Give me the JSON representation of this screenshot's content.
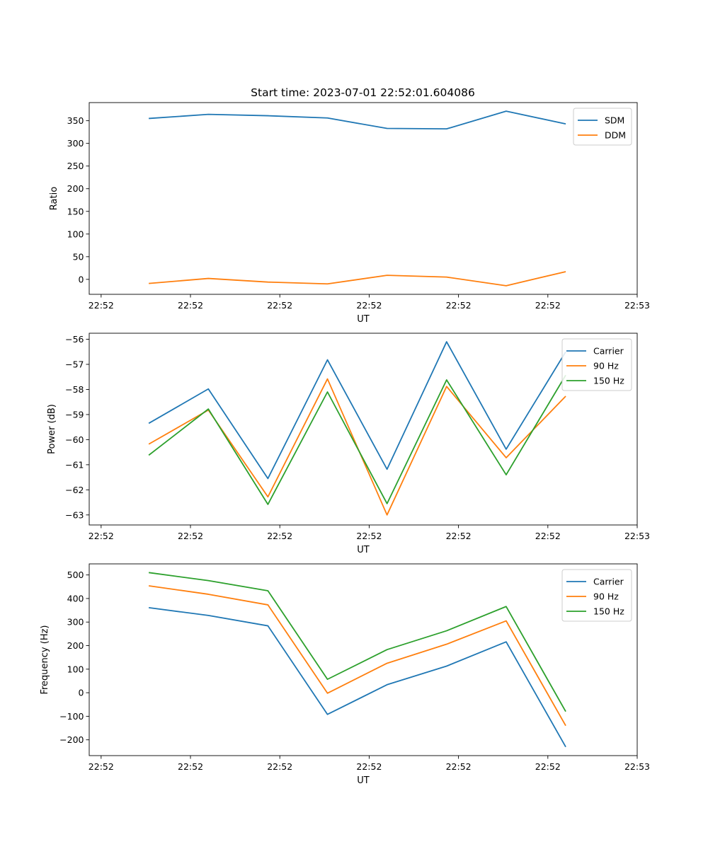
{
  "figure_title": "Start time: 2023-07-01 22:52:01.604086",
  "chart_data": [
    {
      "type": "line",
      "name": "ratio",
      "title": "Start time: 2023-07-01 22:52:01.604086",
      "xlabel": "UT",
      "ylabel": "Ratio",
      "xlim": [
        0,
        9.2
      ],
      "xticks": [
        0.2,
        1.7,
        3.2,
        4.7,
        6.2,
        7.7,
        9.2
      ],
      "xticklabels": [
        "22:52",
        "22:52",
        "22:52",
        "22:52",
        "22:52",
        "22:52",
        "22:53"
      ],
      "ylim": [
        -33,
        390
      ],
      "yticks": [
        0,
        50,
        100,
        150,
        200,
        250,
        300,
        350
      ],
      "yticklabels": [
        "0",
        "50",
        "100",
        "150",
        "200",
        "250",
        "300",
        "350"
      ],
      "legend_position": "top-right",
      "x": [
        1,
        2,
        3,
        4,
        5,
        6,
        7,
        8
      ],
      "series": [
        {
          "name": "SDM",
          "color": "#1f77b4",
          "values": [
            355,
            364,
            361,
            356,
            333,
            332,
            371,
            343
          ]
        },
        {
          "name": "DDM",
          "color": "#ff7f0e",
          "values": [
            -9,
            2,
            -6,
            -10,
            9,
            5,
            -14,
            17
          ]
        }
      ]
    },
    {
      "type": "line",
      "name": "power",
      "title": "",
      "xlabel": "UT",
      "ylabel": "Power (dB)",
      "xlim": [
        0,
        9.2
      ],
      "xticks": [
        0.2,
        1.7,
        3.2,
        4.7,
        6.2,
        7.7,
        9.2
      ],
      "xticklabels": [
        "22:52",
        "22:52",
        "22:52",
        "22:52",
        "22:52",
        "22:52",
        "22:53"
      ],
      "ylim": [
        -63.4,
        -55.76
      ],
      "yticks": [
        -63,
        -62,
        -61,
        -60,
        -59,
        -58,
        -57,
        -56
      ],
      "yticklabels": [
        "−63",
        "−62",
        "−61",
        "−60",
        "−59",
        "−58",
        "−57",
        "−56"
      ],
      "legend_position": "top-right",
      "x": [
        1,
        2,
        3,
        4,
        5,
        6,
        7,
        8
      ],
      "series": [
        {
          "name": "Carrier",
          "color": "#1f77b4",
          "values": [
            -59.35,
            -57.98,
            -61.55,
            -56.82,
            -61.18,
            -56.1,
            -60.38,
            -56.5
          ]
        },
        {
          "name": "90 Hz",
          "color": "#ff7f0e",
          "values": [
            -60.18,
            -58.82,
            -62.28,
            -57.58,
            -63.0,
            -57.88,
            -60.72,
            -58.27
          ]
        },
        {
          "name": "150 Hz",
          "color": "#2ca02c",
          "values": [
            -60.62,
            -58.78,
            -62.58,
            -58.1,
            -62.55,
            -57.62,
            -61.4,
            -57.43
          ]
        }
      ]
    },
    {
      "type": "line",
      "name": "frequency",
      "title": "",
      "xlabel": "UT",
      "ylabel": "Frequency (Hz)",
      "xlim": [
        0,
        9.2
      ],
      "xticks": [
        0.2,
        1.7,
        3.2,
        4.7,
        6.2,
        7.7,
        9.2
      ],
      "xticklabels": [
        "22:52",
        "22:52",
        "22:52",
        "22:52",
        "22:52",
        "22:52",
        "22:53"
      ],
      "ylim": [
        -267,
        547
      ],
      "yticks": [
        -200,
        -100,
        0,
        100,
        200,
        300,
        400,
        500
      ],
      "yticklabels": [
        "−200",
        "−100",
        "0",
        "100",
        "200",
        "300",
        "400",
        "500"
      ],
      "legend_position": "top-right",
      "x": [
        1,
        2,
        3,
        4,
        5,
        6,
        7,
        8
      ],
      "series": [
        {
          "name": "Carrier",
          "color": "#1f77b4",
          "values": [
            361,
            328,
            284,
            -92,
            34,
            113,
            216,
            -230
          ]
        },
        {
          "name": "90 Hz",
          "color": "#ff7f0e",
          "values": [
            454,
            418,
            373,
            -2,
            125,
            206,
            305,
            -140
          ]
        },
        {
          "name": "150 Hz",
          "color": "#2ca02c",
          "values": [
            510,
            476,
            433,
            57,
            183,
            263,
            366,
            -80
          ]
        }
      ]
    }
  ]
}
